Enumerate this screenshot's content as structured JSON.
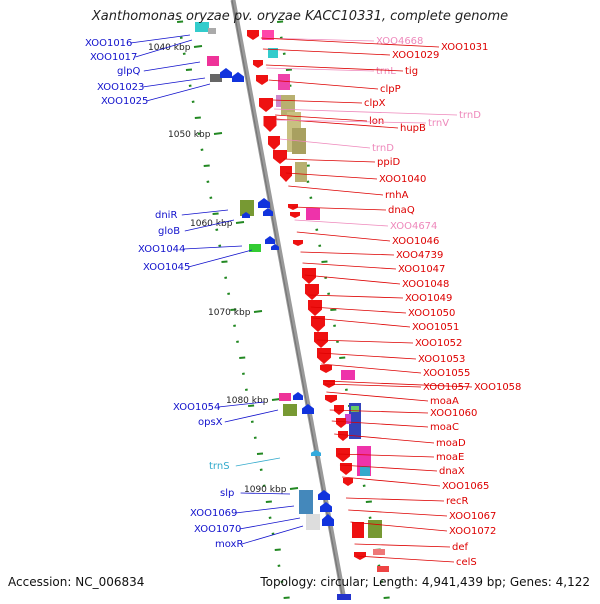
{
  "title": "Xanthomonas oryzae pv. oryzae KACC10331, complete genome",
  "footer": {
    "accession": "Accession: NC_006834",
    "summary": "Topology: circular; Length: 4,941,439 bp; Genes: 4,122"
  },
  "colors": {
    "left_label": "#1111cc",
    "right_label": "#dd0000",
    "pale_label": "#ee88bb",
    "cyan_label": "#33aacc",
    "backbone": "#888888",
    "tick": "#228822"
  },
  "scale_labels": [
    "1040 kbp",
    "1050 kbp",
    "1060 kbp",
    "1070 kbp",
    "1080 kbp",
    "1090 kbp"
  ],
  "left_labels": [
    "XOO1016",
    "XOO1017",
    "glpQ",
    "XOO1023",
    "XOO1025",
    "dniR",
    "gloB",
    "XOO1044",
    "XOO1045",
    "XOO1054",
    "opsX",
    "trnS",
    "slp",
    "XOO1069",
    "XOO1070",
    "moxR"
  ],
  "right_labels": [
    "XOO4668",
    "XOO1029",
    "XOO1031",
    "trnL",
    "tig",
    "clpP",
    "clpX",
    "lon",
    "hupB",
    "trnV",
    "trnD",
    "trnD",
    "ppiD",
    "XOO1040",
    "rnhA",
    "dnaQ",
    "XOO4674",
    "XOO1046",
    "XOO4739",
    "XOO1047",
    "XOO1048",
    "XOO1049",
    "XOO1050",
    "XOO1051",
    "XOO1052",
    "XOO1053",
    "XOO1055",
    "XOO1057",
    "XOO1058",
    "moaA",
    "XOO1060",
    "moaC",
    "moaD",
    "moaE",
    "dnaX",
    "XOO1065",
    "recR",
    "XOO1067",
    "XOO1072",
    "def",
    "celS"
  ]
}
